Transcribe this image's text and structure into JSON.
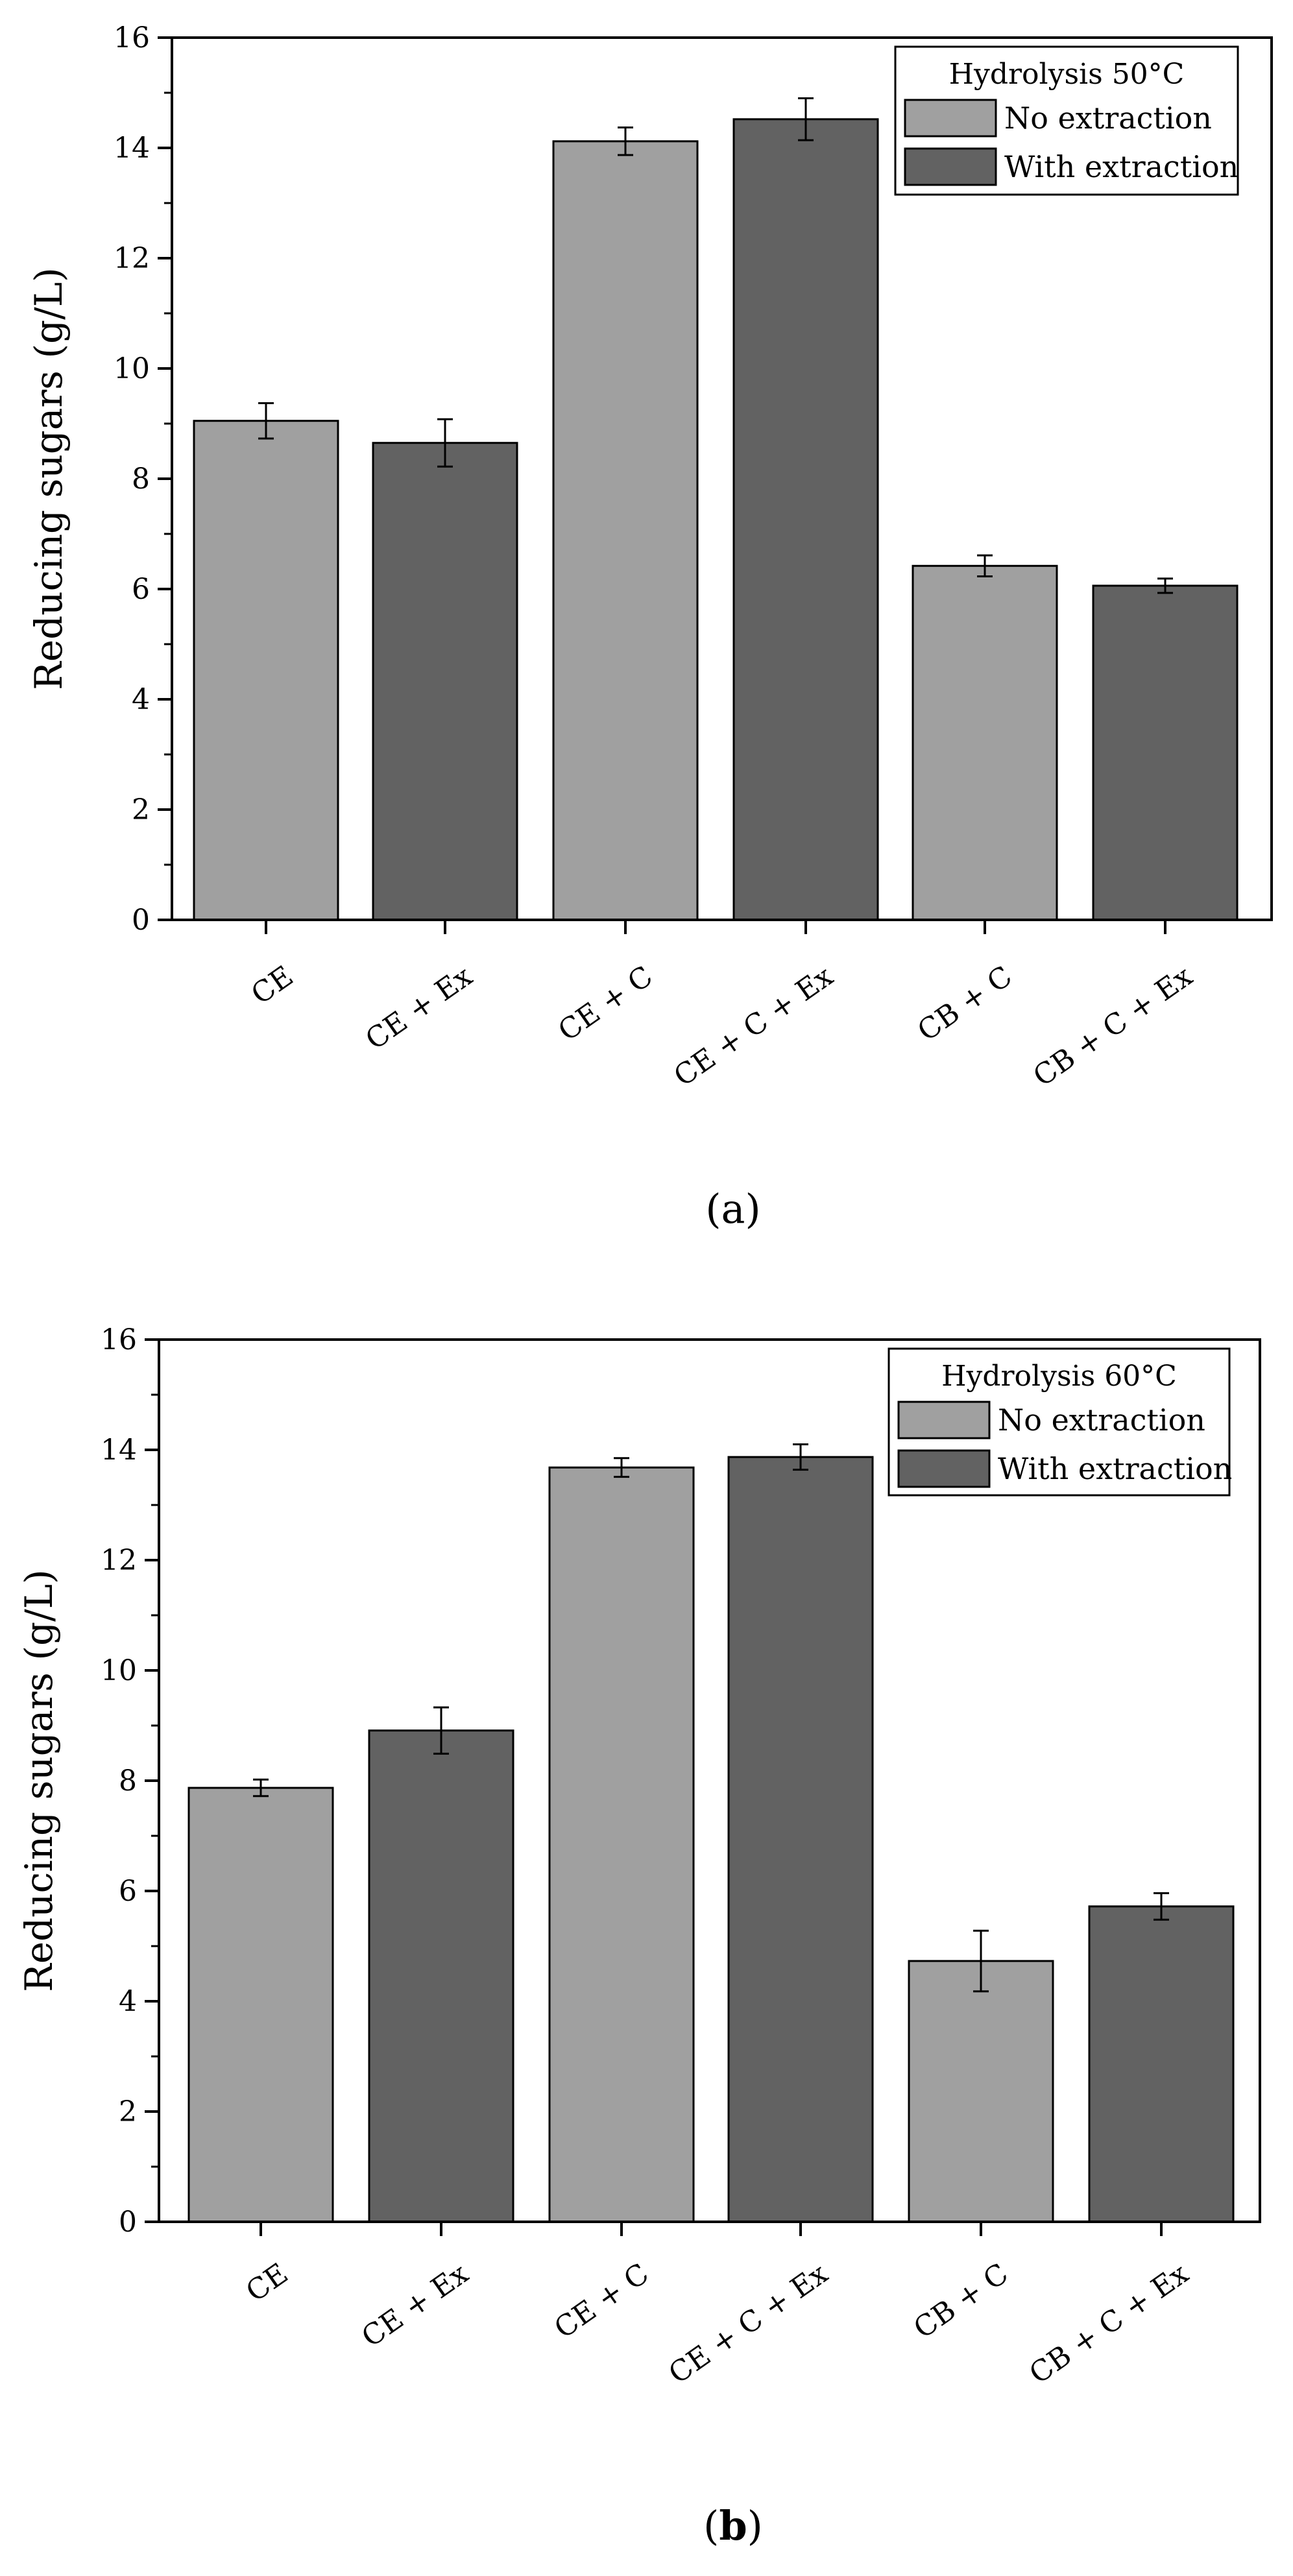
{
  "chart_data": [
    {
      "type": "bar",
      "panel": "a",
      "caption": "(a)",
      "caption_letter": "a",
      "caption_bold": false,
      "ylabel": "Reducing sugars (g/L)",
      "xlabel": "",
      "ylim": [
        0,
        16
      ],
      "yticks": [
        0,
        2,
        4,
        6,
        8,
        10,
        12,
        14,
        16
      ],
      "grid": false,
      "legend_position": "top-right",
      "legend_title": "Hydrolysis 50°C",
      "categories": [
        "CE",
        "CE + Ex",
        "CE + C",
        "CE + C + Ex",
        "CB + C",
        "CB + C + Ex"
      ],
      "series_labels": [
        "No extraction",
        "With extraction"
      ],
      "colors": {
        "No extraction": "#a0a0a0",
        "With extraction": "#626262"
      },
      "values": [
        9.05,
        8.65,
        14.12,
        14.52,
        6.42,
        6.06
      ],
      "errors": [
        0.32,
        0.43,
        0.25,
        0.38,
        0.19,
        0.13
      ],
      "bar_series": [
        "No extraction",
        "With extraction",
        "No extraction",
        "With extraction",
        "No extraction",
        "With extraction"
      ]
    },
    {
      "type": "bar",
      "panel": "b",
      "caption": "(b)",
      "caption_letter": "b",
      "caption_bold": true,
      "ylabel": "Reducing sugars (g/L)",
      "xlabel": "",
      "ylim": [
        0,
        16
      ],
      "yticks": [
        0,
        2,
        4,
        6,
        8,
        10,
        12,
        14,
        16
      ],
      "grid": false,
      "legend_position": "top-right",
      "legend_title": "Hydrolysis 60°C",
      "categories": [
        "CE",
        "CE + Ex",
        "CE + C",
        "CE + C + Ex",
        "CB + C",
        "CB + C + Ex"
      ],
      "series_labels": [
        "No extraction",
        "With extraction"
      ],
      "colors": {
        "No extraction": "#a0a0a0",
        "With extraction": "#626262"
      },
      "values": [
        7.87,
        8.91,
        13.68,
        13.87,
        4.73,
        5.72
      ],
      "errors": [
        0.15,
        0.42,
        0.17,
        0.23,
        0.55,
        0.24
      ],
      "bar_series": [
        "No extraction",
        "With extraction",
        "No extraction",
        "With extraction",
        "No extraction",
        "With extraction"
      ]
    }
  ]
}
